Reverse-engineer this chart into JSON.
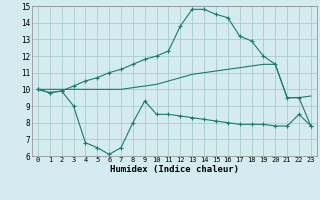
{
  "xlabel": "Humidex (Indice chaleur)",
  "background_color": "#d4ecf0",
  "grid_color": "#aacccc",
  "line_color": "#1a7a6e",
  "x_range": [
    -0.5,
    23.5
  ],
  "y_range": [
    6,
    15
  ],
  "x_ticks": [
    0,
    1,
    2,
    3,
    4,
    5,
    6,
    7,
    8,
    9,
    10,
    11,
    12,
    13,
    14,
    15,
    16,
    17,
    18,
    19,
    20,
    21,
    22,
    23
  ],
  "y_ticks": [
    6,
    7,
    8,
    9,
    10,
    11,
    12,
    13,
    14,
    15
  ],
  "series": [
    {
      "x": [
        0,
        1,
        2,
        3,
        4,
        5,
        6,
        7,
        8,
        9,
        10,
        11,
        12,
        13,
        14,
        15,
        16,
        17,
        18,
        19,
        20,
        21,
        22,
        23
      ],
      "y": [
        10.0,
        9.8,
        9.9,
        9.0,
        6.8,
        6.5,
        6.1,
        6.5,
        8.0,
        9.3,
        8.5,
        8.5,
        8.4,
        8.3,
        8.2,
        8.1,
        8.0,
        7.9,
        7.9,
        7.9,
        7.8,
        7.8,
        8.5,
        7.8
      ],
      "marker": "+"
    },
    {
      "x": [
        0,
        1,
        2,
        3,
        4,
        5,
        6,
        7,
        8,
        9,
        10,
        11,
        12,
        13,
        14,
        15,
        16,
        17,
        18,
        19,
        20,
        21,
        22,
        23
      ],
      "y": [
        10.0,
        10.0,
        10.0,
        10.0,
        10.0,
        10.0,
        10.0,
        10.0,
        10.1,
        10.2,
        10.3,
        10.5,
        10.7,
        10.9,
        11.0,
        11.1,
        11.2,
        11.3,
        11.4,
        11.5,
        11.5,
        9.5,
        9.5,
        9.6
      ],
      "marker": null
    },
    {
      "x": [
        0,
        1,
        2,
        3,
        4,
        5,
        6,
        7,
        8,
        9,
        10,
        11,
        12,
        13,
        14,
        15,
        16,
        17,
        18,
        19,
        20,
        21,
        22,
        23
      ],
      "y": [
        10.0,
        9.8,
        9.9,
        10.2,
        10.5,
        10.7,
        11.0,
        11.2,
        11.5,
        11.8,
        12.0,
        12.3,
        13.8,
        14.8,
        14.8,
        14.5,
        14.3,
        13.2,
        12.9,
        12.0,
        11.5,
        9.5,
        9.5,
        7.8
      ],
      "marker": "+"
    }
  ]
}
